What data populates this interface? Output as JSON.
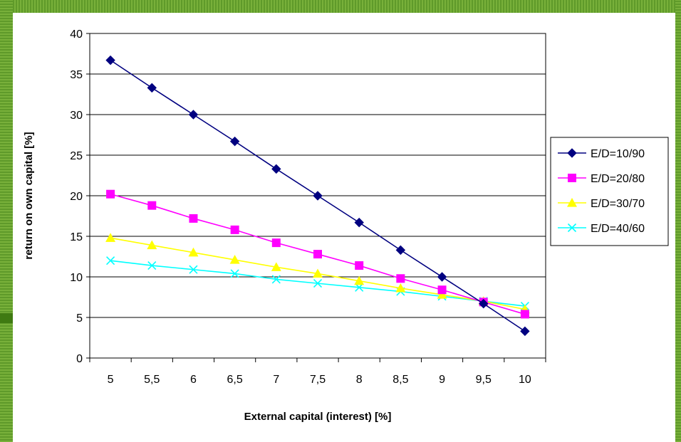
{
  "chart_data": {
    "type": "line",
    "title": "",
    "xlabel": "External capital (interest) [%]",
    "ylabel": "return on own capital [%]",
    "x": [
      "5",
      "5,5",
      "6",
      "6,5",
      "7",
      "7,5",
      "8",
      "8,5",
      "9",
      "9,5",
      "10"
    ],
    "ylim": [
      0,
      40
    ],
    "yticks": [
      "0",
      "5",
      "10",
      "15",
      "20",
      "25",
      "30",
      "35",
      "40"
    ],
    "grid": true,
    "legend_position": "right",
    "series": [
      {
        "name": "E/D=10/90",
        "color": "#000080",
        "marker": "diamond",
        "values": [
          36.7,
          33.3,
          30.0,
          26.7,
          23.3,
          20.0,
          16.7,
          13.3,
          10.0,
          6.7,
          3.3
        ]
      },
      {
        "name": "E/D=20/80",
        "color": "#ff00ff",
        "marker": "square",
        "values": [
          20.2,
          18.8,
          17.2,
          15.8,
          14.2,
          12.8,
          11.4,
          9.8,
          8.4,
          6.9,
          5.4
        ]
      },
      {
        "name": "E/D=30/70",
        "color": "#ffff00",
        "marker": "triangle",
        "values": [
          14.8,
          13.9,
          13.0,
          12.1,
          11.2,
          10.4,
          9.5,
          8.6,
          7.8,
          7.0,
          6.0
        ]
      },
      {
        "name": "E/D=40/60",
        "color": "#00ffff",
        "marker": "x",
        "values": [
          12.0,
          11.4,
          10.9,
          10.4,
          9.7,
          9.2,
          8.7,
          8.2,
          7.6,
          7.0,
          6.4
        ]
      }
    ]
  }
}
